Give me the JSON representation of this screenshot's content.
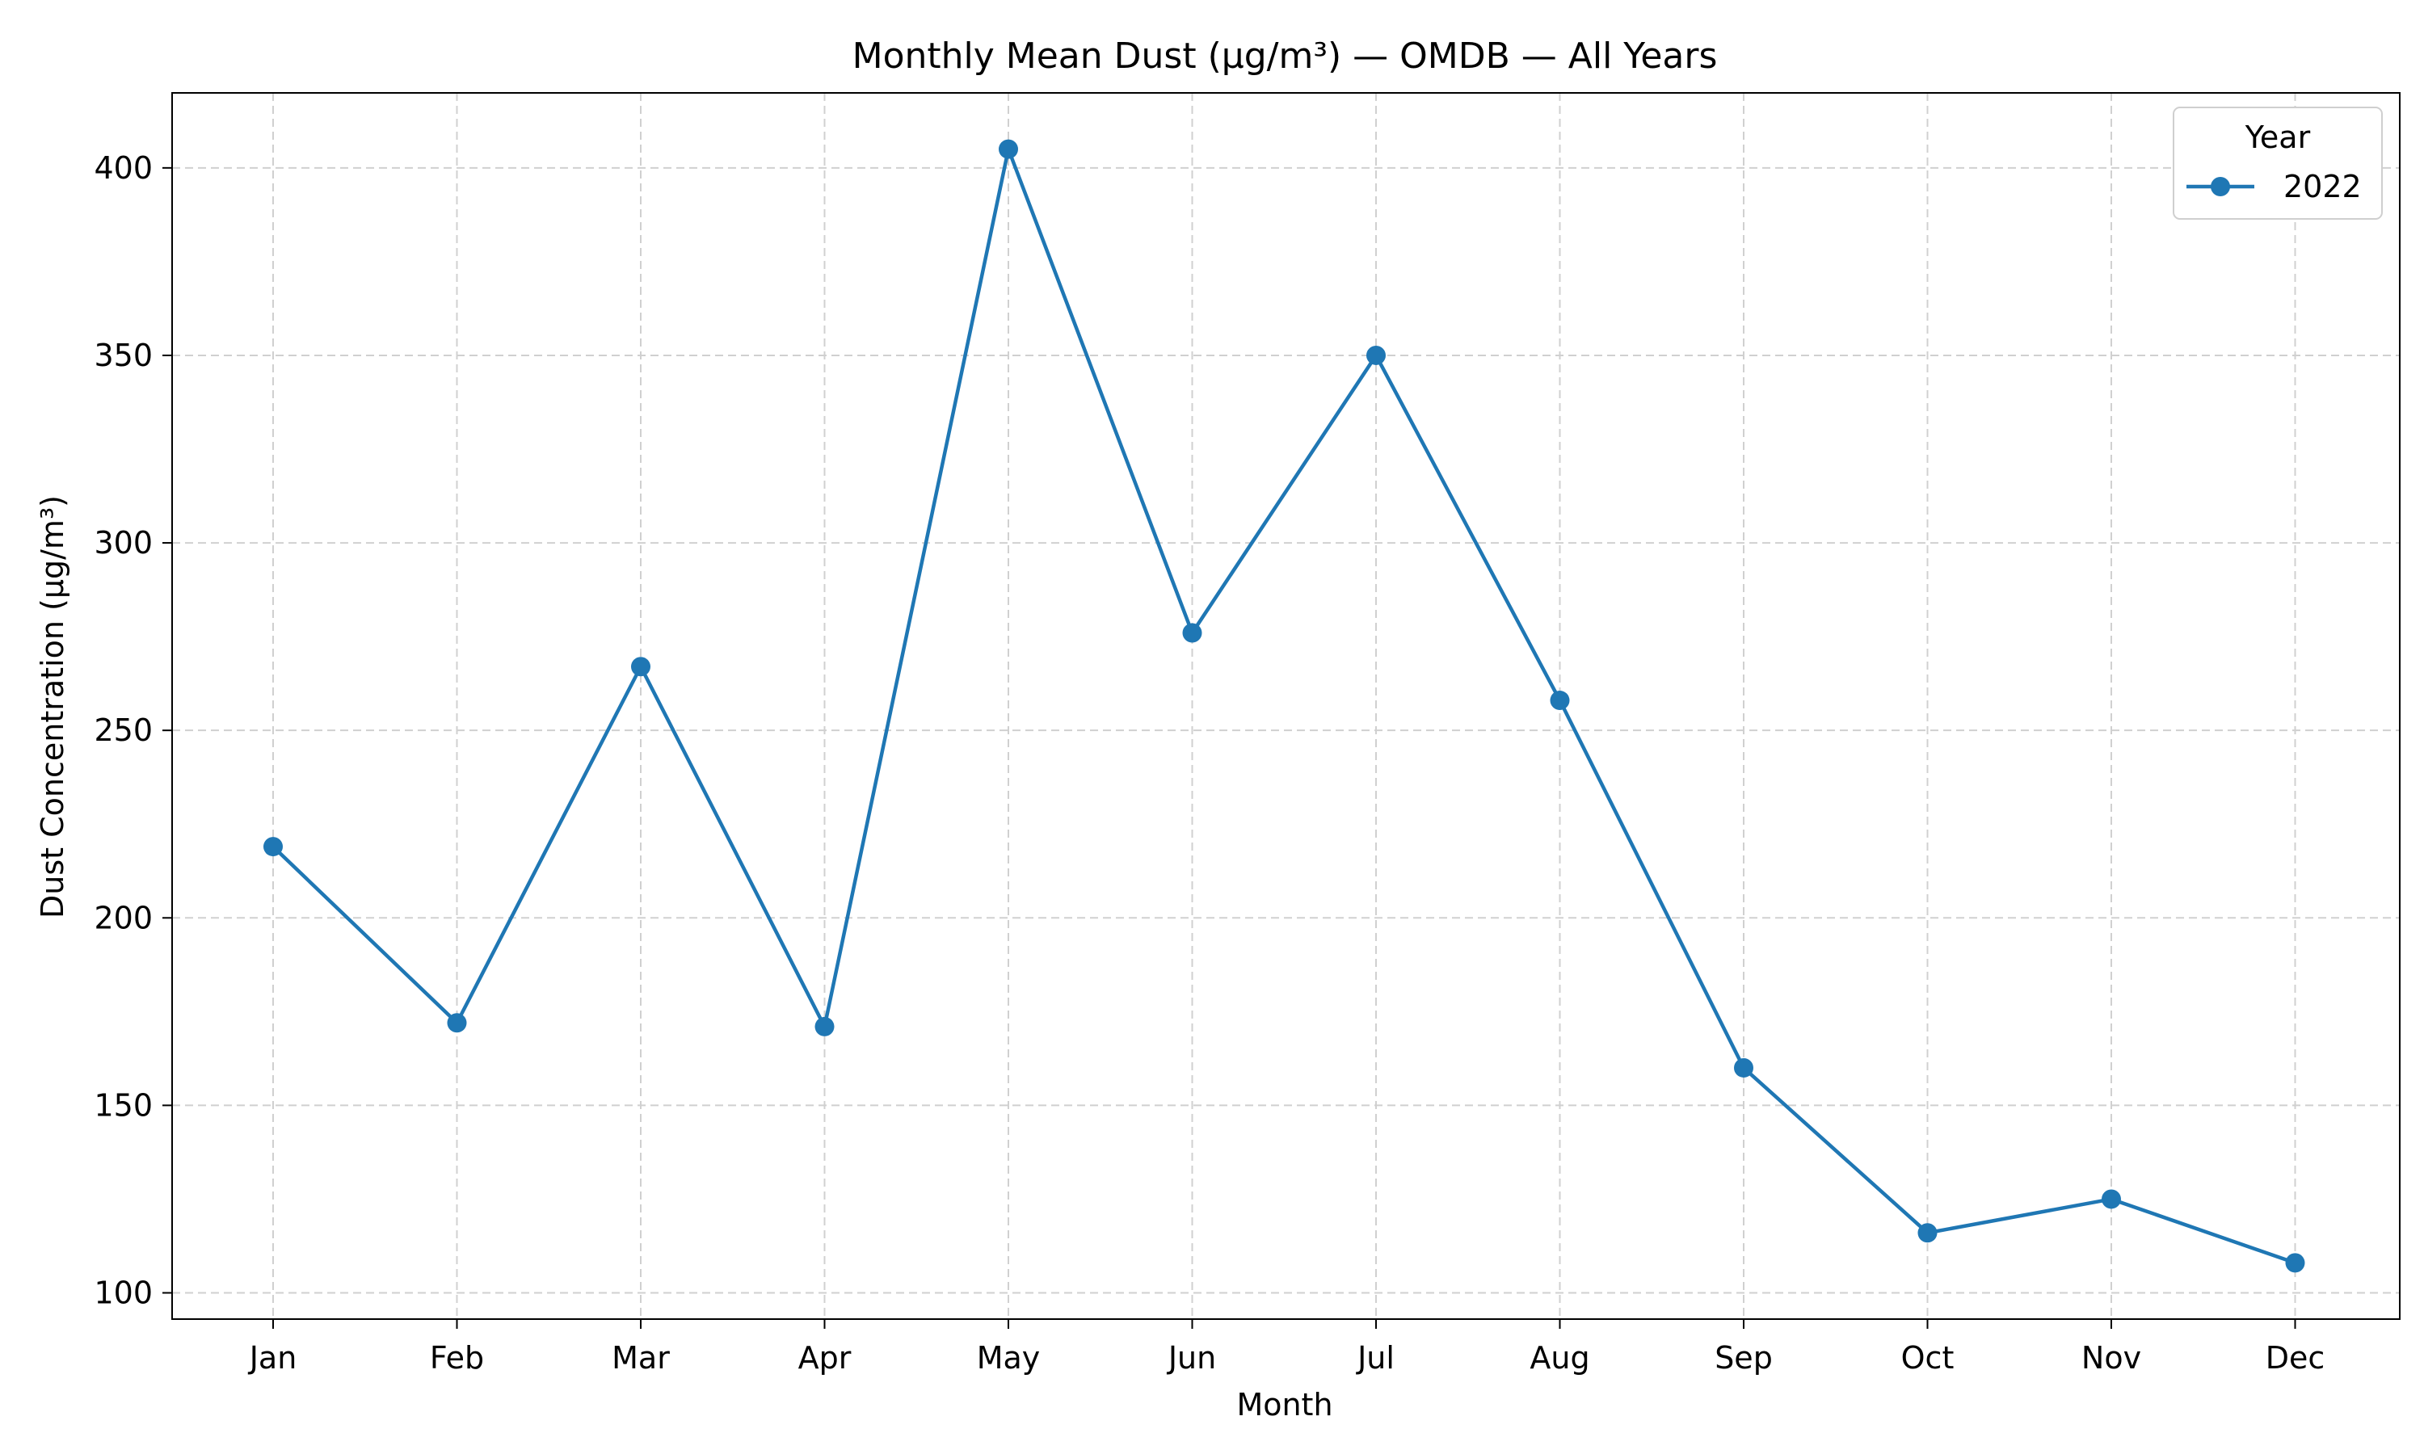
{
  "chart_data": {
    "type": "line",
    "title": "Monthly Mean Dust (µg/m³) — OMDB — All Years",
    "xlabel": "Month",
    "ylabel": "Dust Concentration (µg/m³)",
    "categories": [
      "Jan",
      "Feb",
      "Mar",
      "Apr",
      "May",
      "Jun",
      "Jul",
      "Aug",
      "Sep",
      "Oct",
      "Nov",
      "Dec"
    ],
    "ylim": [
      93,
      420
    ],
    "yticks": [
      100,
      150,
      200,
      250,
      300,
      350,
      400
    ],
    "grid": true,
    "legend": {
      "title": "Year",
      "placement": "top-right"
    },
    "series": [
      {
        "name": "2022",
        "color": "#1f77b4",
        "marker": "circle",
        "values": [
          219,
          172,
          267,
          171,
          405,
          276,
          350,
          258,
          160,
          116,
          125,
          108
        ]
      }
    ]
  }
}
